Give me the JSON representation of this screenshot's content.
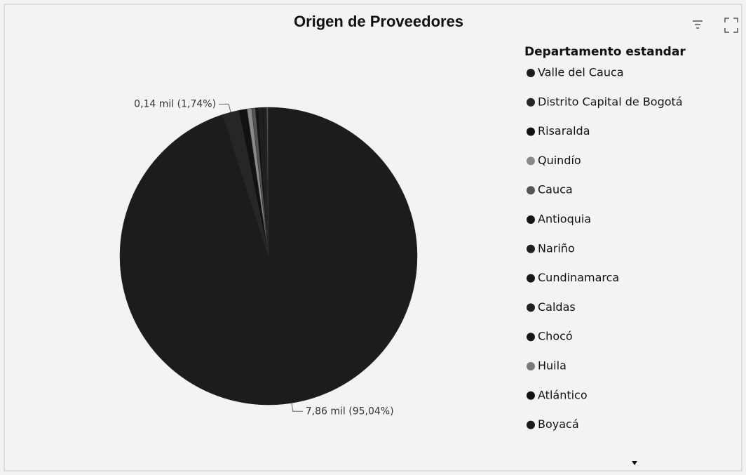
{
  "chart_data": {
    "type": "pie",
    "title": "Origen de Proveedores",
    "legend_title": "Departamento estandar",
    "categories": [
      "Valle del Cauca",
      "Distrito Capital de Bogotá",
      "Risaralda",
      "Quindío",
      "Cauca",
      "Antioquia",
      "Nariño",
      "Cundinamarca",
      "Caldas",
      "Chocó",
      "Huila",
      "Atlántico",
      "Boyacá"
    ],
    "values": [
      95.04,
      1.74,
      0.9,
      0.5,
      0.4,
      0.35,
      0.3,
      0.25,
      0.2,
      0.12,
      0.1,
      0.05,
      0.05
    ],
    "value_labels": [
      "7,86 mil (95,04%)",
      "0,14 mil (1,74%)",
      null,
      null,
      null,
      null,
      null,
      null,
      null,
      null,
      null,
      null,
      null
    ],
    "colors": [
      "#1c1c1c",
      "#262626",
      "#111111",
      "#8a8a8a",
      "#555555",
      "#141414",
      "#1e1e1e",
      "#181818",
      "#202020",
      "#161616",
      "#7a7a7a",
      "#121212",
      "#1a1a1a"
    ],
    "legend": "right"
  }
}
